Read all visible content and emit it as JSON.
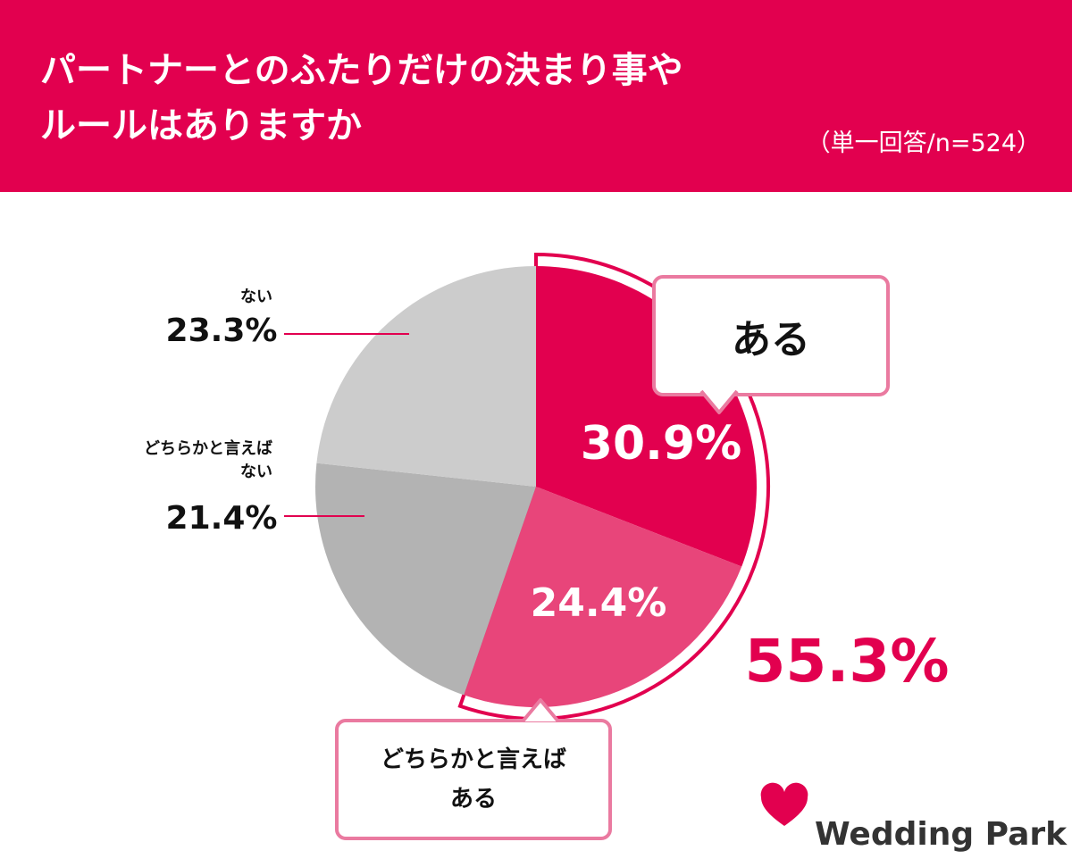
{
  "chart_data": {
    "type": "pie",
    "title": "パートナーとのふたりだけの決まり事やルールはありますか",
    "subtitle": "（単一回答/n=524）",
    "categories": [
      "ある",
      "どちらかと言えばある",
      "どちらかと言えばない",
      "ない"
    ],
    "values": [
      30.9,
      24.4,
      21.4,
      23.3
    ],
    "value_labels": [
      "30.9%",
      "24.4%",
      "21.4%",
      "23.3%"
    ],
    "colors": [
      "#e2004f",
      "#e8457a",
      "#b3b3b3",
      "#cccccc"
    ],
    "annotation": {
      "value": 55.3,
      "label": "55.3%"
    },
    "logo": "Wedding Park"
  }
}
